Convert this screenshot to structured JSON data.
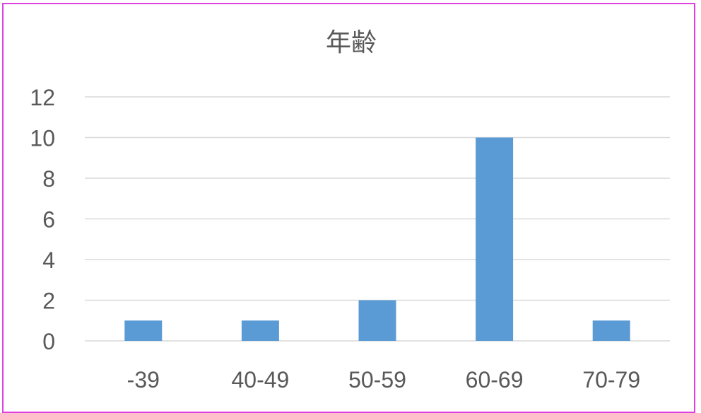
{
  "chart_data": {
    "type": "bar",
    "title": "年齢",
    "categories": [
      "-39",
      "40-49",
      "50-59",
      "60-69",
      "70-79"
    ],
    "values": [
      1,
      1,
      2,
      10,
      1
    ],
    "xlabel": "",
    "ylabel": "",
    "ylim": [
      0,
      12
    ],
    "yticks": [
      0,
      2,
      4,
      6,
      8,
      10,
      12
    ],
    "grid": true,
    "legend": "none",
    "bar_color": "#5b9bd5",
    "grid_color": "#d9d9d9",
    "frame_color": "#e040e0"
  }
}
